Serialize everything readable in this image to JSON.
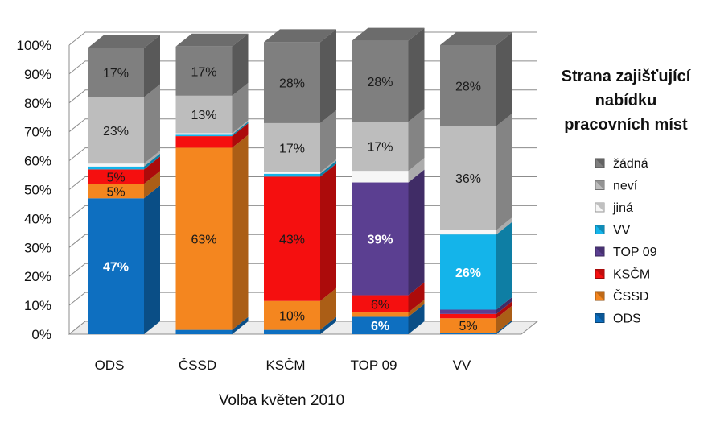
{
  "chart_data": {
    "type": "bar",
    "stacked": true,
    "three_d": true,
    "xlabel": "Volba květen 2010",
    "ylabel": "",
    "ylim": [
      0,
      100
    ],
    "y_ticks": [
      "0%",
      "10%",
      "20%",
      "30%",
      "40%",
      "50%",
      "60%",
      "70%",
      "80%",
      "90%",
      "100%"
    ],
    "legend_title": "Strana zajišťující nabídku pracovních míst",
    "legend_title_lines": [
      "Strana zajišťující",
      "nabídku",
      "pracovních míst"
    ],
    "legend_position": "right",
    "categories": [
      "ODS",
      "ČSSD",
      "KSČM",
      "TOP 09",
      "VV"
    ],
    "series": [
      {
        "name": "ODS",
        "color": "#0e6fc0",
        "values": [
          47,
          1.5,
          1.5,
          6,
          0.5
        ],
        "labels": [
          "47%",
          "",
          "",
          "6%",
          ""
        ]
      },
      {
        "name": "ČSSD",
        "color": "#f4861f",
        "values": [
          5,
          63,
          10,
          1.5,
          5
        ],
        "labels": [
          "5%",
          "63%",
          "10%",
          "",
          "5%"
        ]
      },
      {
        "name": "KSČM",
        "color": "#f50f0f",
        "values": [
          5,
          4,
          43,
          6,
          1.5
        ],
        "labels": [
          "5%",
          "",
          "43%",
          "6%",
          ""
        ]
      },
      {
        "name": "TOP 09",
        "color": "#5b3f91",
        "values": [
          0,
          0,
          0,
          39,
          1.5
        ],
        "labels": [
          "",
          "",
          "",
          "39%",
          ""
        ]
      },
      {
        "name": "VV",
        "color": "#14b4ea",
        "values": [
          1,
          0.5,
          1,
          0,
          26
        ],
        "labels": [
          "",
          "",
          "",
          "",
          "26%"
        ]
      },
      {
        "name": "jiná",
        "color": "#f6f6f6",
        "values": [
          1,
          0.5,
          0.5,
          4,
          1.5
        ],
        "labels": [
          "",
          "",
          "",
          "",
          ""
        ]
      },
      {
        "name": "neví",
        "color": "#bdbdbd",
        "values": [
          23,
          13,
          17,
          17,
          36
        ],
        "labels": [
          "23%",
          "13%",
          "17%",
          "17%",
          "36%"
        ]
      },
      {
        "name": "žádná",
        "color": "#7f7f7f",
        "values": [
          17,
          17,
          28,
          28,
          28
        ],
        "labels": [
          "17%",
          "17%",
          "28%",
          "28%",
          "28%"
        ]
      }
    ],
    "legend_order": [
      "žádná",
      "neví",
      "jiná",
      "VV",
      "TOP 09",
      "KSČM",
      "ČSSD",
      "ODS"
    ],
    "label_colors": {
      "dark": "#1a1a1a",
      "light": "#ffffff"
    }
  }
}
